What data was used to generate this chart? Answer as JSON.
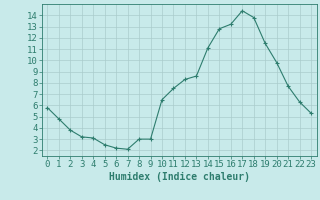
{
  "x": [
    0,
    1,
    2,
    3,
    4,
    5,
    6,
    7,
    8,
    9,
    10,
    11,
    12,
    13,
    14,
    15,
    16,
    17,
    18,
    19,
    20,
    21,
    22,
    23
  ],
  "y": [
    5.8,
    4.8,
    3.8,
    3.2,
    3.1,
    2.5,
    2.2,
    2.1,
    3.0,
    3.0,
    6.5,
    7.5,
    8.3,
    8.6,
    11.1,
    12.8,
    13.2,
    14.4,
    13.8,
    11.5,
    9.8,
    7.7,
    6.3,
    5.3
  ],
  "line_color": "#2e7d6e",
  "marker": "+",
  "marker_color": "#2e7d6e",
  "bg_color": "#c8eaea",
  "grid_color": "#aacccc",
  "xlabel": "Humidex (Indice chaleur)",
  "xlim": [
    -0.5,
    23.5
  ],
  "ylim": [
    1.5,
    15.0
  ],
  "yticks": [
    2,
    3,
    4,
    5,
    6,
    7,
    8,
    9,
    10,
    11,
    12,
    13,
    14
  ],
  "xticks": [
    0,
    1,
    2,
    3,
    4,
    5,
    6,
    7,
    8,
    9,
    10,
    11,
    12,
    13,
    14,
    15,
    16,
    17,
    18,
    19,
    20,
    21,
    22,
    23
  ],
  "axis_color": "#2e7d6e",
  "tick_color": "#2e7d6e",
  "xlabel_fontsize": 7,
  "tick_fontsize": 6.5
}
